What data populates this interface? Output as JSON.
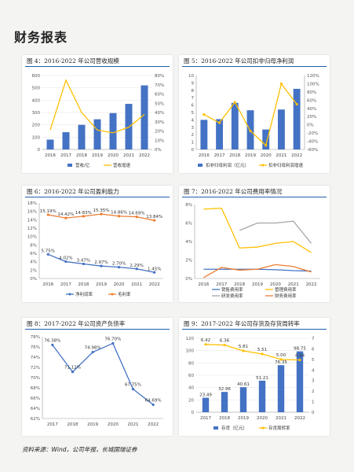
{
  "page_title": "财务报表",
  "source_note": "资料来源：Wind，公司年报，长城国瑞证券",
  "colors": {
    "blue": "#4472c4",
    "yellow": "#ffc000",
    "gray": "#a5a5a5",
    "orange": "#ed7d31",
    "pale_blue": "#b8cde8"
  },
  "chart_data": [
    {
      "id": "c4",
      "type": "bar+line",
      "title": "图 4：2016-2022 年公司营收规模",
      "categories": [
        "2016",
        "2017",
        "2018",
        "2019",
        "2020",
        "2021",
        "2022"
      ],
      "series": [
        {
          "name": "营收/亿",
          "type": "bar",
          "axis": "left",
          "values": [
            80,
            140,
            200,
            245,
            295,
            370,
            520
          ]
        },
        {
          "name": "营收增速",
          "type": "line",
          "axis": "right",
          "values": [
            21,
            75,
            40,
            21,
            18,
            24,
            38
          ]
        }
      ],
      "left_axis": {
        "ylim": [
          0,
          600
        ],
        "ticks": [
          "0",
          "100",
          "200",
          "300",
          "400",
          "500",
          "600"
        ]
      },
      "right_axis": {
        "ylim": [
          0,
          80
        ],
        "ticks": [
          "0%",
          "10%",
          "20%",
          "30%",
          "40%",
          "50%",
          "60%",
          "70%",
          "80%"
        ]
      },
      "legend_position": "bottom"
    },
    {
      "id": "c5",
      "type": "bar+line",
      "title": "图 5：2016-2022 年公司扣非归母净利润",
      "categories": [
        "2016",
        "2017",
        "2018",
        "2019",
        "2020",
        "2021",
        "2022"
      ],
      "series": [
        {
          "name": "扣非归母利润（亿元）",
          "type": "bar",
          "axis": "left",
          "values": [
            4,
            4.1,
            6.3,
            5.3,
            2.7,
            5.4,
            8.2
          ]
        },
        {
          "name": "扣非归母利润增速",
          "type": "line",
          "axis": "right",
          "values": [
            25,
            5,
            55,
            -15,
            -50,
            100,
            50
          ]
        }
      ],
      "left_axis": {
        "ylim": [
          0,
          10
        ],
        "ticks": [
          "0",
          "1",
          "2",
          "3",
          "4",
          "5",
          "6",
          "7",
          "8",
          "9",
          "10"
        ]
      },
      "right_axis": {
        "ylim": [
          -60,
          120
        ],
        "ticks": [
          "-60%",
          "-40%",
          "-20%",
          "0%",
          "20%",
          "40%",
          "60%",
          "80%",
          "100%",
          "120%"
        ]
      },
      "legend_position": "bottom"
    },
    {
      "id": "c6",
      "type": "line",
      "title": "图 6：2016-2022 年公司盈利能力",
      "categories": [
        "2016",
        "2017",
        "2018",
        "2019",
        "2020",
        "2021",
        "2022"
      ],
      "series": [
        {
          "name": "净利润率",
          "values": [
            5.75,
            4.02,
            3.47,
            2.97,
            2.7,
            2.29,
            1.45
          ],
          "labels": [
            "5.75%",
            "4.02%",
            "3.47%",
            "2.97%",
            "2.70%",
            "2.29%",
            "1.45%"
          ]
        },
        {
          "name": "毛利率",
          "values": [
            15.19,
            14.42,
            14.83,
            15.35,
            14.86,
            14.69,
            13.84
          ],
          "labels": [
            "15.19%",
            "14.42%",
            "14.83%",
            "15.35%",
            "14.86%",
            "14.69%",
            "13.84%"
          ]
        }
      ],
      "left_axis": {
        "ylim": [
          0,
          18
        ],
        "ticks": [
          "0%",
          "2%",
          "4%",
          "6%",
          "8%",
          "10%",
          "12%",
          "14%",
          "16%",
          "18%"
        ]
      },
      "legend_position": "bottom"
    },
    {
      "id": "c7",
      "type": "line",
      "title": "图 7：2016-2022 年公司费用率情况",
      "categories": [
        "2016",
        "2017",
        "2018",
        "2019",
        "2020",
        "2021",
        "2022"
      ],
      "series": [
        {
          "name": "销售费用率",
          "values": [
            1.0,
            1.0,
            1.0,
            1.0,
            0.95,
            0.85,
            0.8
          ]
        },
        {
          "name": "管理费用率",
          "values": [
            7.5,
            7.6,
            3.3,
            3.4,
            3.8,
            4.0,
            2.8
          ]
        },
        {
          "name": "研发费用率",
          "values": [
            null,
            null,
            5.2,
            6.0,
            6.0,
            6.2,
            3.8
          ]
        },
        {
          "name": "财务费用率",
          "values": [
            0.1,
            1.2,
            0.9,
            1.0,
            1.5,
            1.3,
            0.7
          ]
        }
      ],
      "left_axis": {
        "ylim": [
          0,
          8
        ],
        "ticks": [
          "0%",
          "2%",
          "4%",
          "6%",
          "8%"
        ]
      },
      "legend_position": "bottom"
    },
    {
      "id": "c8",
      "type": "line",
      "title": "图 8：2017-2022 年公司资产负债率",
      "categories": [
        "2017",
        "2018",
        "2019",
        "2020",
        "2021",
        "2022"
      ],
      "series": [
        {
          "name": "资产负债率",
          "values": [
            76.38,
            71.12,
            74.98,
            76.7,
            67.75,
            64.69
          ],
          "labels": [
            "76.38%",
            "71.12%",
            "74.98%",
            "76.70%",
            "67.75%",
            "64.69%"
          ]
        }
      ],
      "left_axis": {
        "ylim": [
          62,
          78
        ],
        "ticks": [
          "62%",
          "64%",
          "66%",
          "68%",
          "70%",
          "72%",
          "74%",
          "76%",
          "78%"
        ]
      },
      "legend_position": "none"
    },
    {
      "id": "c9",
      "type": "bar+line",
      "title": "图 9：2017-2022 年公司存货及存货周转率",
      "categories": [
        "2017",
        "2018",
        "2019",
        "2020",
        "2021",
        "2022"
      ],
      "series": [
        {
          "name": "存货（亿元）",
          "type": "bar",
          "axis": "left",
          "values": [
            23.49,
            32.96,
            40.61,
            51.21,
            76.35,
            98.75
          ],
          "labels": [
            "23.49",
            "32.96",
            "40.61",
            "51.21",
            "76.35",
            "98.75"
          ]
        },
        {
          "name": "存货周转率",
          "type": "line",
          "axis": "right",
          "values": [
            6.42,
            6.36,
            5.81,
            5.51,
            5.0,
            4.94
          ],
          "labels": [
            "6.42",
            "6.36",
            "5.81",
            "5.51",
            "5.00",
            "4.94"
          ]
        }
      ],
      "left_axis": {
        "ylim": [
          0,
          120
        ],
        "ticks": [
          "0",
          "20",
          "40",
          "60",
          "80",
          "100",
          "120"
        ]
      },
      "right_axis": {
        "ylim": [
          0,
          7
        ],
        "ticks": [
          "0",
          "1",
          "2",
          "3",
          "4",
          "5",
          "6",
          "7"
        ]
      },
      "legend_position": "bottom"
    }
  ]
}
